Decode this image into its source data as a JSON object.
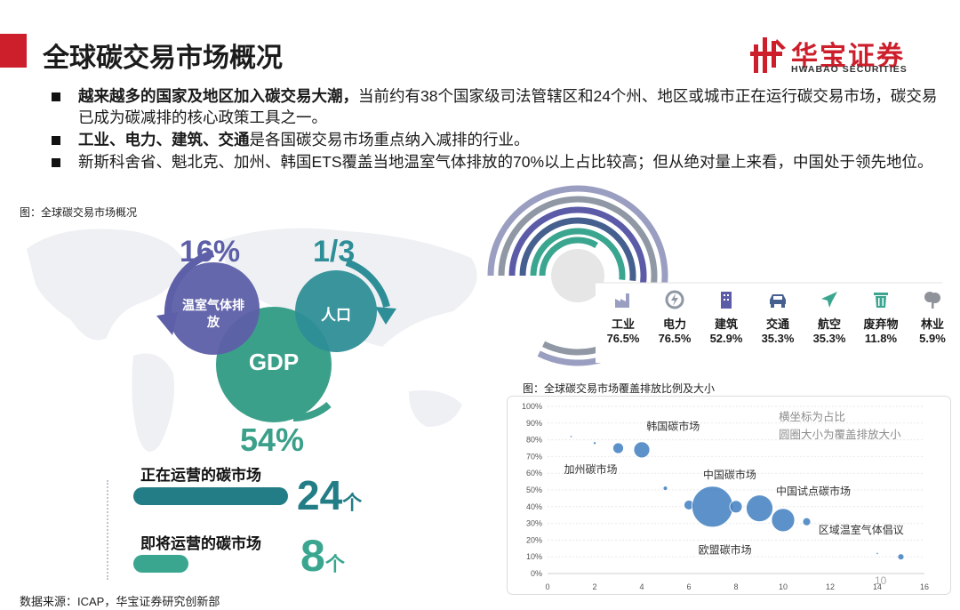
{
  "header": {
    "title": "全球碳交易市场概况",
    "logo_cn": "华宝证券",
    "logo_en": "HWABAO SECURITIES"
  },
  "bullets": [
    {
      "bold": "越来越多的国家及地区加入碳交易大潮，",
      "text": "当前约有38个国家级司法管辖区和24个州、地区或城市正在运行碳交易市场，碳交易已成为碳减排的核心政策工具之一。"
    },
    {
      "bold": "工业、电力、建筑、交通",
      "text": "是各国碳交易市场重点纳入减排的行业。"
    },
    {
      "bold": "",
      "text": "新斯科舍省、魁北克、加州、韩国ETS覆盖当地温室气体排放的70%以上占比较高；但从绝对量上来看，中国处于领先地位。"
    }
  ],
  "left_figure": {
    "caption": "图：全球碳交易市场概况",
    "circles": [
      {
        "label": "温室气体排放",
        "pct": "16%",
        "value": 16,
        "color": "#5d5fa8"
      },
      {
        "label": "人口",
        "pct": "1/3",
        "value": 33.3,
        "color": "#2e8e97"
      },
      {
        "label": "GDP",
        "pct": "54%",
        "value": 54,
        "color": "#3ba08a"
      }
    ],
    "markets": [
      {
        "label": "正在运营的碳市场",
        "count": "24",
        "unit": "个",
        "value": 24,
        "color": "#227d86"
      },
      {
        "label": "即将运营的碳市场",
        "count": "8",
        "unit": "个",
        "value": 8,
        "color": "#3aa68f"
      }
    ]
  },
  "sectors": [
    {
      "name": "工业",
      "pct": "76.5%",
      "value": 76.5,
      "icon": "factory-icon",
      "color": "#9a9ec0"
    },
    {
      "name": "电力",
      "pct": "76.5%",
      "value": 76.5,
      "icon": "power-icon",
      "color": "#8f98a4"
    },
    {
      "name": "建筑",
      "pct": "52.9%",
      "value": 52.9,
      "icon": "building-icon",
      "color": "#5b5ba7"
    },
    {
      "name": "交通",
      "pct": "35.3%",
      "value": 35.3,
      "icon": "car-icon",
      "color": "#45608f"
    },
    {
      "name": "航空",
      "pct": "35.3%",
      "value": 35.3,
      "icon": "plane-icon",
      "color": "#3aa68f"
    },
    {
      "name": "废弃物",
      "pct": "11.8%",
      "value": 11.8,
      "icon": "trash-icon",
      "color": "#3aa68f"
    },
    {
      "name": "林业",
      "pct": "5.9%",
      "value": 5.9,
      "icon": "tree-icon",
      "color": "#8f929a"
    }
  ],
  "chart_caption": "图：全球碳交易市场覆盖排放比例及大小",
  "chart_data": {
    "type": "scatter",
    "title": "",
    "xlabel": "",
    "ylabel": "",
    "xlim": [
      0,
      16
    ],
    "ylim": [
      0,
      100
    ],
    "xticks": [
      "0",
      "2",
      "4",
      "6",
      "8",
      "10",
      "12",
      "14",
      "16"
    ],
    "yticks": [
      "0%",
      "10%",
      "20%",
      "30%",
      "40%",
      "50%",
      "60%",
      "70%",
      "80%",
      "90%",
      "100%"
    ],
    "legend_notes": [
      "横坐标为占比",
      "圆圈大小为覆盖排放大小"
    ],
    "points": [
      {
        "x": 1,
        "y": 82,
        "r": 1.2
      },
      {
        "x": 2,
        "y": 78,
        "r": 1.6
      },
      {
        "x": 3,
        "y": 75,
        "r": 6
      },
      {
        "x": 4,
        "y": 74,
        "r": 9
      },
      {
        "x": 5,
        "y": 51,
        "r": 2.5
      },
      {
        "x": 6,
        "y": 41,
        "r": 5.5
      },
      {
        "x": 7,
        "y": 40,
        "r": 23
      },
      {
        "x": 8,
        "y": 40,
        "r": 7
      },
      {
        "x": 9,
        "y": 39,
        "r": 15
      },
      {
        "x": 10,
        "y": 32,
        "r": 13
      },
      {
        "x": 11,
        "y": 31,
        "r": 4.5
      },
      {
        "x": 14,
        "y": 12,
        "r": 1.2
      },
      {
        "x": 15,
        "y": 10,
        "r": 3.5
      }
    ],
    "annotations": [
      {
        "text": "韩国碳市场",
        "x": 4.2,
        "y": 86
      },
      {
        "text": "加州碳市场",
        "x": 0.7,
        "y": 60
      },
      {
        "text": "中国碳市场",
        "x": 6.6,
        "y": 57
      },
      {
        "text": "中国试点碳市场",
        "x": 9.7,
        "y": 47
      },
      {
        "text": "区域温室气体倡议",
        "x": 11.5,
        "y": 24
      },
      {
        "text": "欧盟碳市场",
        "x": 6.4,
        "y": 12
      }
    ]
  },
  "footer": {
    "source": "数据来源：ICAP，华宝证券研究创新部",
    "page": "10"
  }
}
